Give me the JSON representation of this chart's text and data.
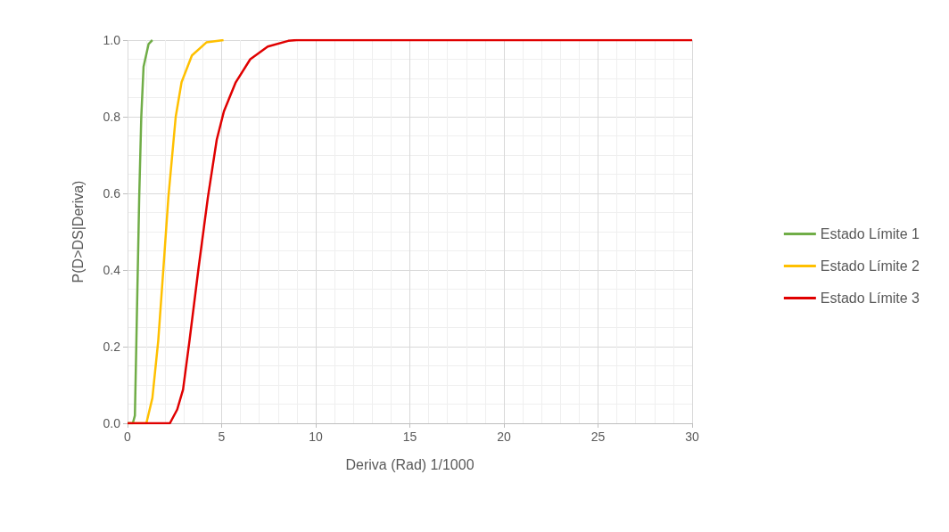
{
  "chart_data": {
    "type": "line",
    "xlabel": "Deriva (Rad) 1/1000",
    "ylabel": "P(D>DS|Deriva)",
    "xlim": [
      0,
      30
    ],
    "xticks": [
      0,
      5,
      10,
      15,
      20,
      25,
      30
    ],
    "ylim": [
      0,
      1
    ],
    "yticks": [
      {
        "value": 0,
        "label": "0.0"
      },
      {
        "value": 0.2,
        "label": "0.2"
      },
      {
        "value": 0.4,
        "label": "0.4"
      },
      {
        "value": 0.6,
        "label": "0.6"
      },
      {
        "value": 0.8,
        "label": "0.8"
      },
      {
        "value": 1,
        "label": "1.0"
      }
    ],
    "grid": true,
    "legend": "right",
    "marker": "none",
    "line_style": "solid",
    "series": [
      {
        "name": "Estado Límite 1",
        "color": "#70ad47",
        "x": [
          0,
          0.28,
          0.39,
          0.47,
          0.62,
          0.73,
          0.85,
          1.12,
          1.32
        ],
        "values": [
          0,
          0,
          0.02,
          0.215,
          0.59,
          0.8,
          0.93,
          0.99,
          1
        ]
      },
      {
        "name": "Estado Límite 2",
        "color": "#ffc000",
        "x": [
          0,
          1.0,
          1.32,
          1.63,
          1.9,
          2.17,
          2.56,
          2.87,
          3.42,
          4.19,
          5.1
        ],
        "values": [
          0,
          0,
          0.066,
          0.215,
          0.4,
          0.59,
          0.8,
          0.89,
          0.96,
          0.994,
          1
        ]
      },
      {
        "name": "Estado Límite 3",
        "color": "#e00000",
        "x": [
          0,
          2.25,
          2.64,
          2.95,
          3.29,
          3.76,
          4.27,
          4.74,
          5.12,
          5.75,
          6.52,
          7.45,
          8.54,
          9.0,
          30
        ],
        "values": [
          0,
          0,
          0.036,
          0.088,
          0.215,
          0.4,
          0.59,
          0.74,
          0.814,
          0.89,
          0.95,
          0.983,
          0.998,
          1,
          1
        ]
      }
    ]
  }
}
